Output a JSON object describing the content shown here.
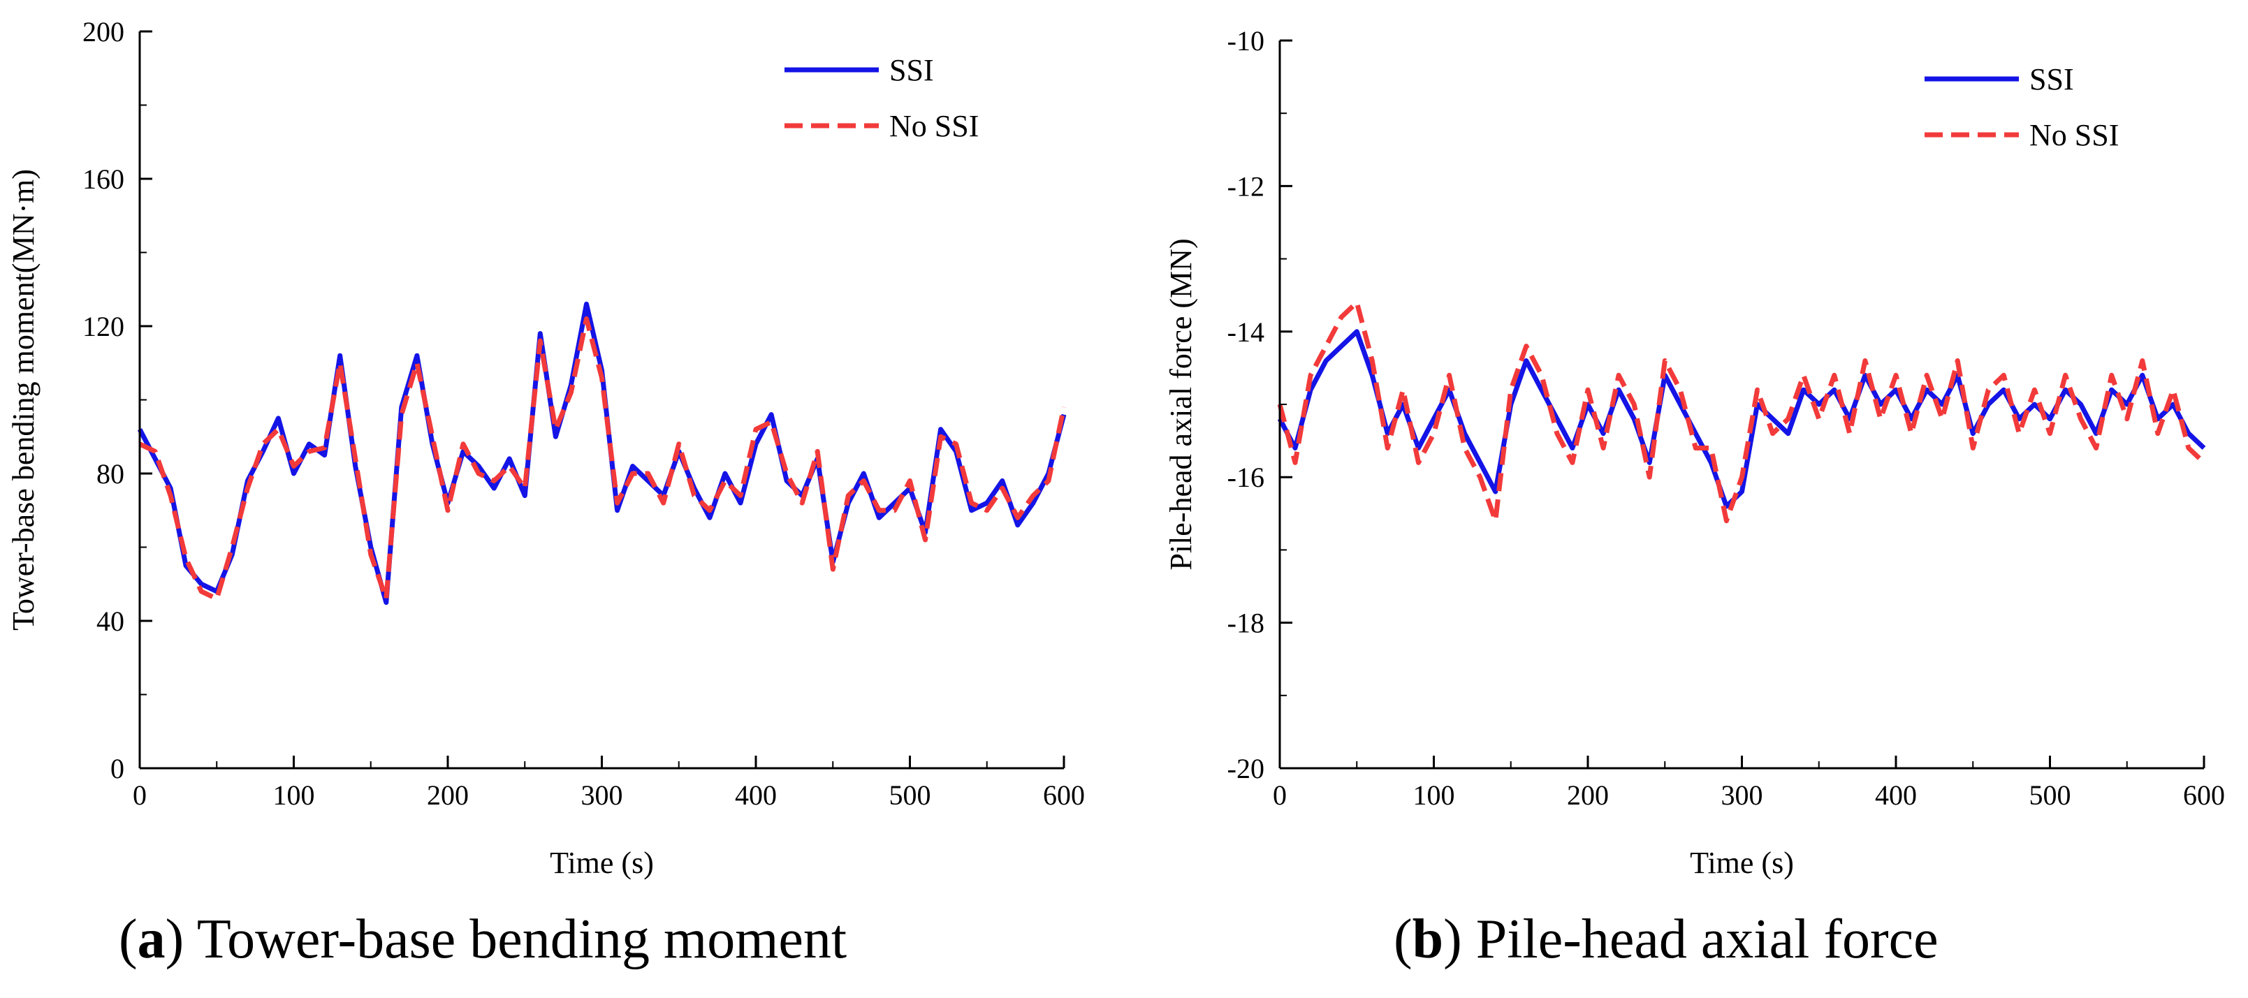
{
  "chart_data": [
    {
      "type": "line",
      "panel": "(a)",
      "caption_letter": "a",
      "caption_text": " Tower-base bending moment",
      "xlabel": "Time (s)",
      "ylabel": "Tower-base bending moment(MN·m)",
      "xlim": [
        0,
        600
      ],
      "ylim": [
        0,
        200
      ],
      "xticks": [
        0,
        100,
        200,
        300,
        400,
        500,
        600
      ],
      "yticks": [
        0,
        40,
        80,
        120,
        160,
        200
      ],
      "legend_position": "top-right",
      "x": [
        0,
        10,
        20,
        30,
        40,
        50,
        60,
        70,
        80,
        90,
        100,
        110,
        120,
        130,
        140,
        150,
        160,
        170,
        180,
        190,
        200,
        210,
        220,
        230,
        240,
        250,
        260,
        270,
        280,
        290,
        300,
        310,
        320,
        330,
        340,
        350,
        360,
        370,
        380,
        390,
        400,
        410,
        420,
        430,
        440,
        450,
        460,
        470,
        480,
        490,
        500,
        510,
        520,
        530,
        540,
        550,
        560,
        570,
        580,
        590,
        600
      ],
      "series": [
        {
          "name": "SSI",
          "color": "#1414e6",
          "dash": "solid",
          "values": [
            92,
            84,
            76,
            55,
            50,
            48,
            58,
            78,
            86,
            95,
            80,
            88,
            85,
            112,
            82,
            60,
            45,
            98,
            112,
            88,
            72,
            86,
            82,
            76,
            84,
            74,
            118,
            90,
            104,
            126,
            108,
            70,
            82,
            78,
            74,
            86,
            76,
            68,
            80,
            72,
            88,
            96,
            78,
            74,
            84,
            56,
            72,
            80,
            68,
            72,
            76,
            64,
            92,
            86,
            70,
            72,
            78,
            66,
            72,
            80,
            96
          ]
        },
        {
          "name": "No SSI",
          "color": "#f23a3a",
          "dash": "dashed",
          "values": [
            88,
            86,
            74,
            57,
            48,
            46,
            60,
            76,
            88,
            92,
            82,
            86,
            87,
            110,
            84,
            58,
            46,
            96,
            110,
            90,
            70,
            88,
            80,
            78,
            82,
            76,
            116,
            92,
            102,
            122,
            106,
            72,
            80,
            80,
            72,
            88,
            74,
            70,
            78,
            74,
            92,
            94,
            80,
            72,
            86,
            54,
            74,
            78,
            70,
            70,
            78,
            62,
            90,
            88,
            72,
            70,
            76,
            68,
            74,
            78,
            98
          ]
        }
      ]
    },
    {
      "type": "line",
      "panel": "(b)",
      "caption_letter": "b",
      "caption_text": " Pile-head axial force",
      "xlabel": "Time (s)",
      "ylabel": "Pile-head axial force (MN)",
      "xlim": [
        0,
        600
      ],
      "ylim": [
        -20,
        -10
      ],
      "xticks": [
        0,
        100,
        200,
        300,
        400,
        500,
        600
      ],
      "yticks": [
        -20,
        -18,
        -16,
        -14,
        -12,
        -10
      ],
      "legend_position": "top-right",
      "x": [
        0,
        10,
        20,
        30,
        40,
        50,
        60,
        70,
        80,
        90,
        100,
        110,
        120,
        130,
        140,
        150,
        160,
        170,
        180,
        190,
        200,
        210,
        220,
        230,
        240,
        250,
        260,
        270,
        280,
        290,
        300,
        310,
        320,
        330,
        340,
        350,
        360,
        370,
        380,
        390,
        400,
        410,
        420,
        430,
        440,
        450,
        460,
        470,
        480,
        490,
        500,
        510,
        520,
        530,
        540,
        550,
        560,
        570,
        580,
        590,
        600
      ],
      "series": [
        {
          "name": "SSI",
          "color": "#1414e6",
          "dash": "solid",
          "values": [
            -15.2,
            -15.6,
            -14.8,
            -14.4,
            -14.2,
            -14.0,
            -14.6,
            -15.4,
            -15.0,
            -15.6,
            -15.2,
            -14.8,
            -15.4,
            -15.8,
            -16.2,
            -15.0,
            -14.4,
            -14.8,
            -15.2,
            -15.6,
            -15.0,
            -15.4,
            -14.8,
            -15.2,
            -15.8,
            -14.6,
            -15.0,
            -15.4,
            -15.8,
            -16.4,
            -16.2,
            -15.0,
            -15.2,
            -15.4,
            -14.8,
            -15.0,
            -14.8,
            -15.2,
            -14.6,
            -15.0,
            -14.8,
            -15.2,
            -14.8,
            -15.0,
            -14.6,
            -15.4,
            -15.0,
            -14.8,
            -15.2,
            -15.0,
            -15.2,
            -14.8,
            -15.0,
            -15.4,
            -14.8,
            -15.0,
            -14.6,
            -15.2,
            -15.0,
            -15.4,
            -15.6
          ]
        },
        {
          "name": "No SSI",
          "color": "#f23a3a",
          "dash": "dashed",
          "values": [
            -15.0,
            -15.8,
            -14.6,
            -14.2,
            -13.8,
            -13.6,
            -14.4,
            -15.6,
            -14.8,
            -15.8,
            -15.4,
            -14.6,
            -15.6,
            -16.0,
            -16.6,
            -14.8,
            -14.2,
            -14.6,
            -15.4,
            -15.8,
            -14.8,
            -15.6,
            -14.6,
            -15.0,
            -16.0,
            -14.4,
            -14.8,
            -15.6,
            -15.6,
            -16.6,
            -16.0,
            -14.8,
            -15.4,
            -15.2,
            -14.6,
            -15.2,
            -14.6,
            -15.4,
            -14.4,
            -15.2,
            -14.6,
            -15.4,
            -14.6,
            -15.2,
            -14.4,
            -15.6,
            -14.8,
            -14.6,
            -15.4,
            -14.8,
            -15.4,
            -14.6,
            -15.2,
            -15.6,
            -14.6,
            -15.2,
            -14.4,
            -15.4,
            -14.8,
            -15.6,
            -15.8
          ]
        }
      ]
    }
  ]
}
